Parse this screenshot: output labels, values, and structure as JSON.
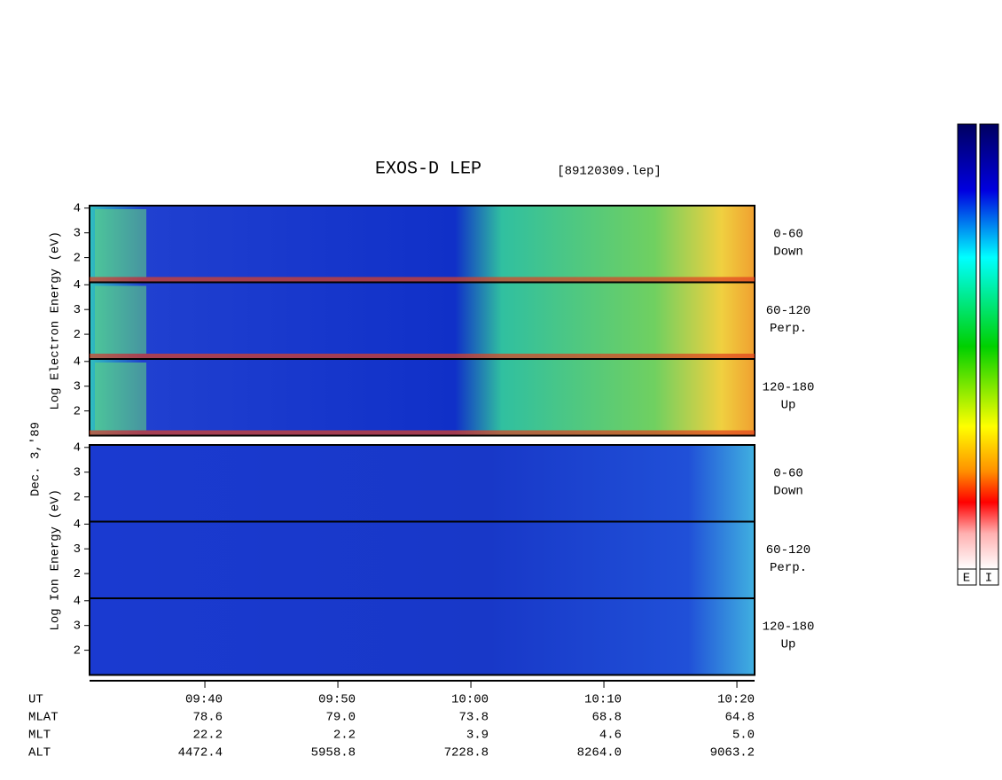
{
  "chart_data": {
    "type": "spectrogram",
    "title": "EXOS-D LEP",
    "file_label": "[89120309.lep]",
    "date_label": "Dec. 3,'89",
    "groups": [
      {
        "ylabel": "Log Electron Energy (eV)",
        "panels": [
          {
            "label": "0-60",
            "sublabel": "Down"
          },
          {
            "label": "60-120",
            "sublabel": "Perp."
          },
          {
            "label": "120-180",
            "sublabel": "Up"
          }
        ]
      },
      {
        "ylabel": "Log Ion Energy (eV)",
        "panels": [
          {
            "label": "0-60",
            "sublabel": "Down"
          },
          {
            "label": "60-120",
            "sublabel": "Perp."
          },
          {
            "label": "120-180",
            "sublabel": "Up"
          }
        ]
      }
    ],
    "ylim": [
      1,
      4.1
    ],
    "yticks": [
      2,
      3,
      4
    ],
    "xlim": [
      571.33,
      621.33
    ],
    "xticks": [
      {
        "value": 580,
        "label": "09:40"
      },
      {
        "value": 590,
        "label": "09:50"
      },
      {
        "value": 600,
        "label": "10:00"
      },
      {
        "value": 610,
        "label": "10:10"
      },
      {
        "value": 620,
        "label": "10:20"
      }
    ],
    "orbit_label": "UT",
    "orbit_rows": [
      {
        "name": "MLAT",
        "values": [
          "78.6",
          "79.0",
          "73.8",
          "68.8",
          "64.8"
        ]
      },
      {
        "name": "MLT",
        "values": [
          "22.2",
          "2.2",
          "3.9",
          "4.6",
          "5.0"
        ]
      },
      {
        "name": "ALT",
        "values": [
          "4472.4",
          "5958.8",
          "7228.8",
          "8264.0",
          "9063.2"
        ]
      }
    ],
    "colorbar_labels": [
      "E",
      "I"
    ]
  }
}
